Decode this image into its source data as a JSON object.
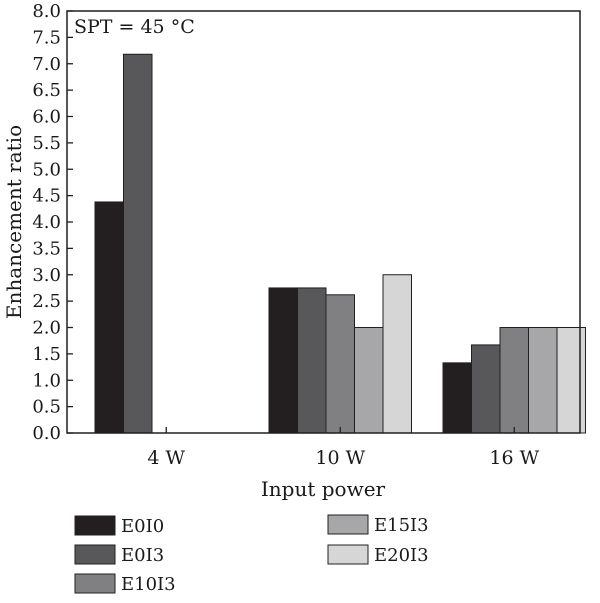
{
  "chart_data": {
    "type": "bar",
    "title": "",
    "annotation": "SPT = 45 °C",
    "xlabel": "Input power",
    "ylabel": "Enhancement ratio",
    "ylim": [
      0,
      8.0
    ],
    "ytick_step": 0.5,
    "yticks": [
      "0.0",
      "0.5",
      "1.0",
      "1.5",
      "2.0",
      "2.5",
      "3.0",
      "3.5",
      "4.0",
      "4.5",
      "5.0",
      "5.5",
      "6.0",
      "6.5",
      "7.0",
      "7.5",
      "8.0"
    ],
    "categories": [
      "4 W",
      "10 W",
      "16 W"
    ],
    "series": [
      {
        "name": "E0I0",
        "color": "#231f20",
        "values": [
          4.38,
          2.75,
          1.33
        ]
      },
      {
        "name": "E0I3",
        "color": "#58585a",
        "values": [
          7.18,
          2.75,
          1.67
        ]
      },
      {
        "name": "E10I3",
        "color": "#808083",
        "values": [
          null,
          2.62,
          2.0
        ]
      },
      {
        "name": "E15I3",
        "color": "#a7a7a9",
        "values": [
          null,
          2.0,
          2.0
        ]
      },
      {
        "name": "E20I3",
        "color": "#d6d6d7",
        "values": [
          null,
          3.0,
          2.0
        ]
      }
    ],
    "legend_position": "bottom",
    "grid": false
  }
}
